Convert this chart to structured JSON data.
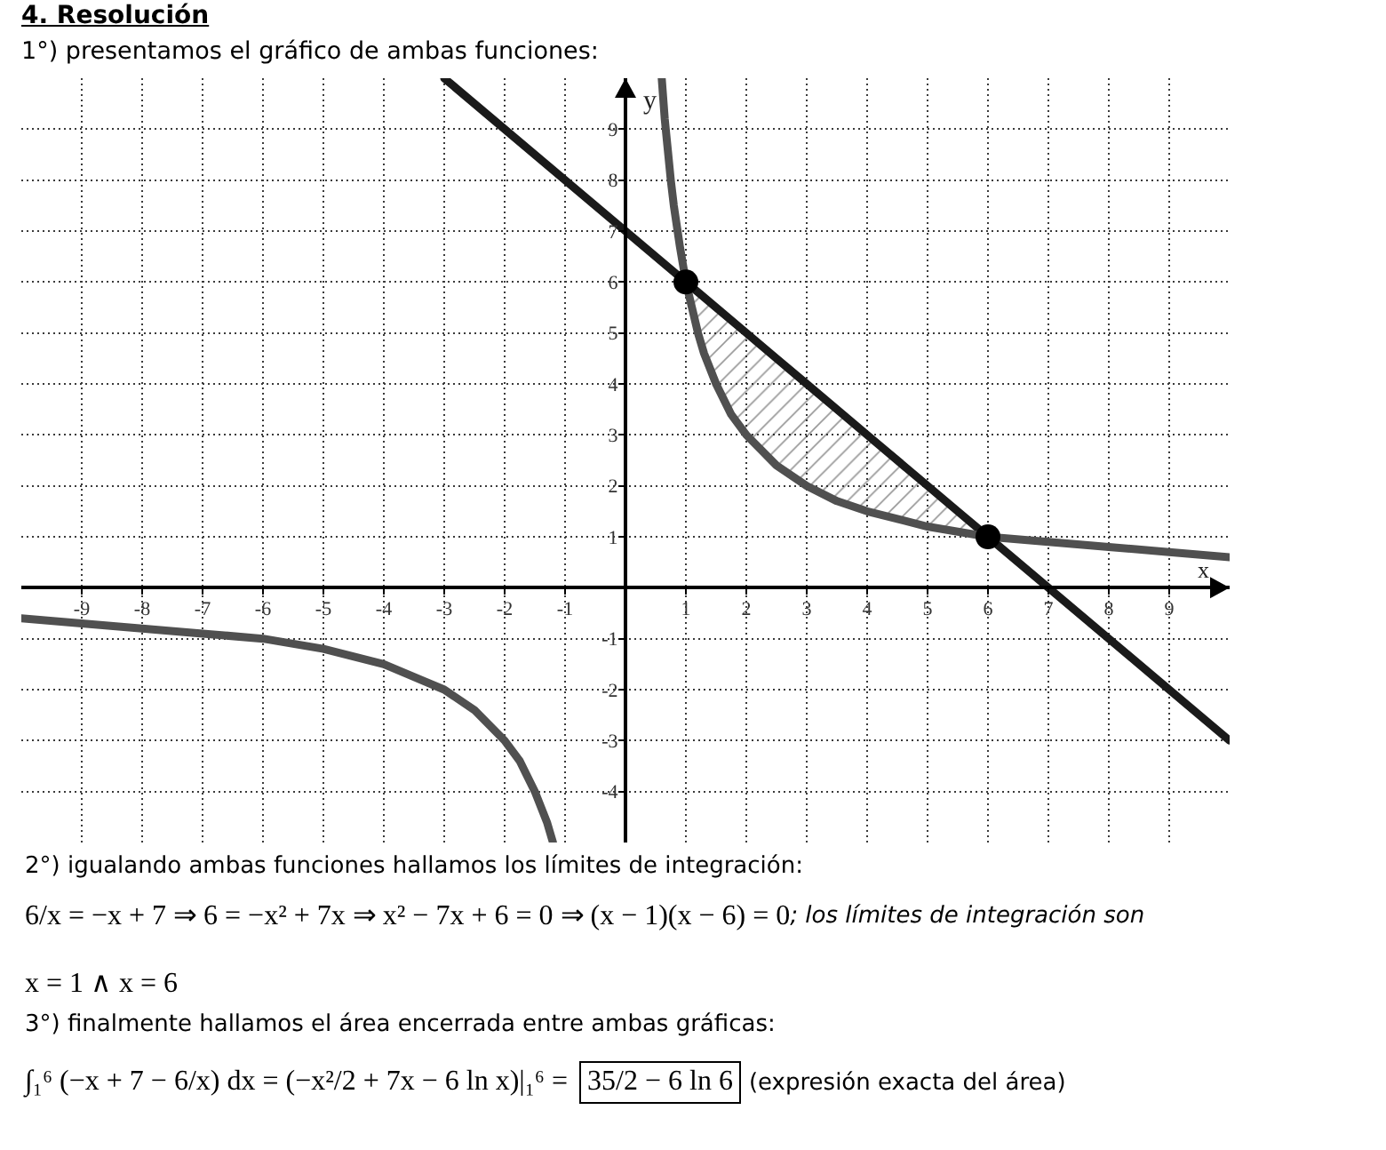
{
  "chart_data": {
    "type": "line",
    "title": "4. Resolución",
    "subtitle": "1°) presentamos el gráfico de ambas funciones:",
    "xlabel": "x",
    "ylabel": "y",
    "xlim": [
      -10,
      10
    ],
    "ylim": [
      -5,
      10
    ],
    "xticks": [
      -9,
      -8,
      -7,
      -6,
      -5,
      -4,
      -3,
      -2,
      -1,
      1,
      2,
      3,
      4,
      5,
      6,
      7,
      8,
      9
    ],
    "yticks": [
      -4,
      -3,
      -2,
      -1,
      1,
      2,
      3,
      4,
      5,
      6,
      7,
      8,
      9
    ],
    "grid": true,
    "series": [
      {
        "color": "#1a1a1a",
        "x": [
          -3,
          1,
          1.2,
          1.5,
          2,
          2.5,
          3,
          3.5,
          4,
          4.5,
          5,
          5.5,
          6,
          10
        ],
        "values": [
          10,
          6,
          5.8,
          5.5,
          5,
          4.5,
          4,
          3.5,
          3,
          2.5,
          2,
          1.5,
          1,
          -3
        ],
        "lower": [
          null,
          6,
          5,
          4,
          3,
          2.4,
          2,
          1.7,
          1.5,
          1.3,
          1.2,
          1.1,
          1,
          null
        ],
        "upper": [
          null,
          6,
          5.8,
          5.5,
          5,
          4.5,
          4,
          3.5,
          3,
          2.5,
          2,
          1.5,
          1,
          null
        ]
      },
      {
        "color": "#505050",
        "x": [
          -10,
          -9,
          -8,
          -7,
          -6,
          -5,
          -4,
          -3,
          -2.5,
          -2,
          -1.75,
          -1.5,
          -1.3,
          -1.2,
          0,
          0.6,
          0.65,
          0.7,
          0.75,
          0.8,
          0.9,
          1,
          1.1,
          1.2,
          1.3,
          1.5,
          1.75,
          2,
          2.5,
          3,
          3.5,
          4,
          5,
          6,
          7,
          8,
          9,
          10
        ],
        "values": [
          -0.6,
          -0.7,
          -0.8,
          -0.9,
          -1,
          -1.2,
          -1.5,
          -2,
          -2.4,
          -3,
          -3.4,
          -4,
          -4.6,
          -5,
          null,
          10,
          9.2,
          8.6,
          8,
          7.5,
          6.7,
          6,
          5.5,
          5,
          4.6,
          4,
          3.4,
          3,
          2.4,
          2,
          1.7,
          1.5,
          1.2,
          1,
          0.9,
          0.8,
          0.7,
          0.6
        ]
      },
      {
        "type": "scatter",
        "color": "#000000",
        "marker": "circle",
        "x": [
          1,
          6
        ],
        "values": [
          6,
          1
        ]
      }
    ],
    "annotations": [
      "2°) igualando ambas funciones hallamos los límites de integración:",
      "6/x = −x + 7 ⇒ 6 = −x² + 7x ⇒ x² − 7x + 6 = 0 ⇒ (x − 1)(x − 6) = 0",
      "; los límites de integración son",
      "x = 1 ∧ x = 6",
      "3°) finalmente hallamos el área encerrada entre ambas gráficas:",
      "∫₁⁶ (−x + 7 − 6/x) dx = (−x²/2 + 7x − 6 ln x)|₁⁶ =",
      "35/2 − 6 ln 6",
      "(expresión exacta del área)"
    ]
  }
}
